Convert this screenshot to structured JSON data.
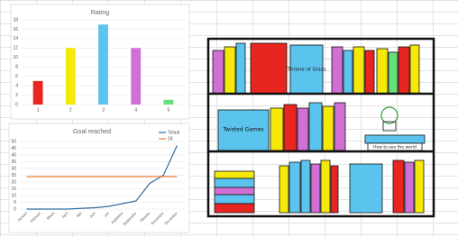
{
  "chart_data": [
    {
      "type": "bar",
      "title": "Rating",
      "categories": [
        "1",
        "2",
        "3",
        "4",
        "5"
      ],
      "values": [
        5,
        12,
        17,
        12,
        1
      ],
      "colors": [
        "#e8251f",
        "#f5e90a",
        "#5bc4ee",
        "#d070d4",
        "#66e07a"
      ],
      "ylim": [
        0,
        18
      ],
      "yticks": [
        0,
        2,
        4,
        6,
        8,
        10,
        12,
        14,
        16,
        18
      ],
      "grid": true
    },
    {
      "type": "line",
      "title": "Goal reached",
      "categories": [
        "Januari",
        "Februari",
        "Maart",
        "April",
        "Mei",
        "Juni",
        "Juli",
        "Augustus",
        "September",
        "Oktober",
        "November",
        "December"
      ],
      "series": [
        {
          "name": "Totaal",
          "color": "#2e6da4",
          "values": [
            0,
            0,
            0,
            0,
            0.5,
            1,
            2,
            4,
            6,
            19,
            25,
            47
          ]
        },
        {
          "name": "24",
          "color": "#ed7d31",
          "values": [
            24,
            24,
            24,
            24,
            24,
            24,
            24,
            24,
            24,
            24,
            24,
            24
          ]
        }
      ],
      "ylim": [
        0,
        50
      ],
      "yticks": [
        0,
        5,
        10,
        15,
        20,
        25,
        30,
        35,
        40,
        45,
        50
      ],
      "grid": true,
      "legend": "top-right"
    }
  ],
  "bookshelf": {
    "books": [
      "Throne of Glass",
      "Twisted Games",
      "How to see the world"
    ]
  }
}
